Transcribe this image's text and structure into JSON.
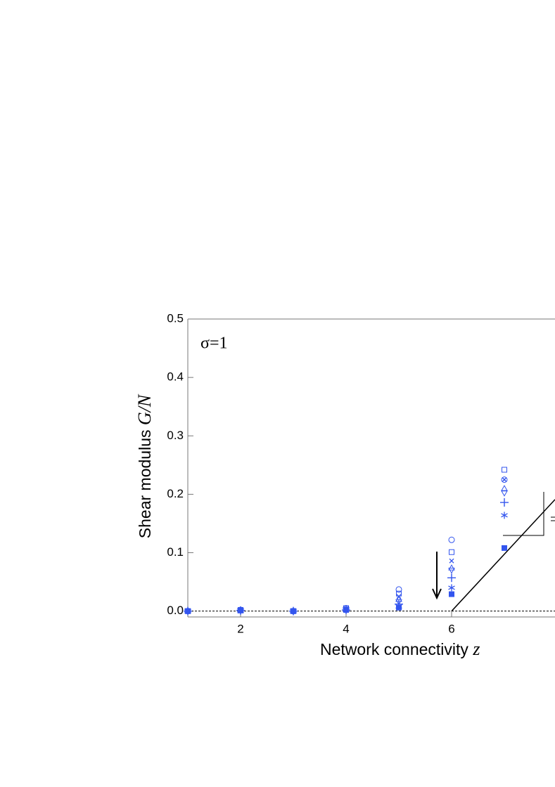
{
  "chart_data": {
    "type": "scatter",
    "annotation": "σ=1",
    "xlabel": [
      "Network connectivity",
      "z"
    ],
    "ylabel": [
      "Shear modulus",
      "G/N"
    ],
    "xlim": [
      1,
      7.96
    ],
    "ylim": [
      -0.01,
      0.5
    ],
    "xticks": [
      2,
      4,
      6
    ],
    "yticks": [
      {
        "value": 0,
        "label": "0.0"
      },
      0.1,
      0.2,
      0.3,
      0.4,
      0.5
    ],
    "hline": 0,
    "x": [
      1,
      2,
      3,
      4,
      5,
      6,
      7
    ],
    "series": [
      {
        "marker": "circle",
        "color": "#3355ee",
        "values": [
          0,
          0.002,
          0,
          0.005,
          0.037,
          0.122,
          0.225
        ]
      },
      {
        "marker": "square",
        "color": "#3355ee",
        "values": [
          0,
          0.002,
          0,
          0.005,
          0.03,
          0.101,
          0.242
        ]
      },
      {
        "marker": "cross",
        "color": "#3355ee",
        "values": [
          0,
          0.002,
          0,
          0.004,
          0.025,
          0.086,
          0.225
        ]
      },
      {
        "marker": "triangle",
        "color": "#3355ee",
        "values": [
          0,
          0.001,
          0,
          0.004,
          0.02,
          0.074,
          0.21
        ]
      },
      {
        "marker": "down-triangle",
        "color": "#3355ee",
        "values": [
          0,
          0.001,
          0,
          0.003,
          0.016,
          0.07,
          0.202
        ]
      },
      {
        "marker": "plus",
        "color": "#3355ee",
        "values": [
          0,
          0.001,
          0,
          0.002,
          0.012,
          0.057,
          0.186
        ]
      },
      {
        "marker": "asterisk",
        "color": "#3355ee",
        "values": [
          0,
          0.001,
          0,
          0.002,
          0.008,
          0.04,
          0.164
        ]
      },
      {
        "marker": "filled-square",
        "color": "#3355ee",
        "values": [
          0,
          0.001,
          0,
          0.002,
          0.006,
          0.029,
          0.108
        ]
      }
    ],
    "fit": {
      "x": [
        6,
        7.96
      ],
      "values": [
        0,
        0.191
      ],
      "color": "#000000"
    }
  }
}
